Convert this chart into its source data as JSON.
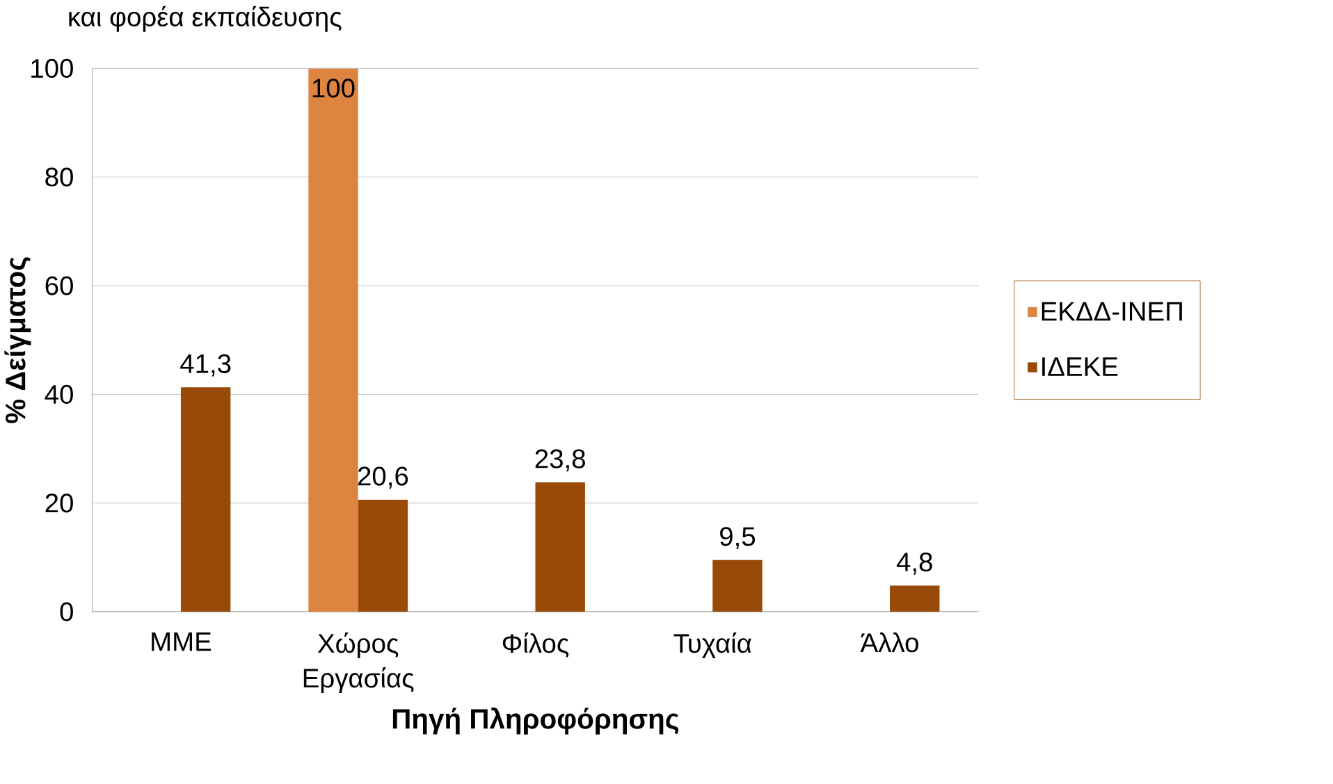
{
  "chart_data": {
    "type": "bar",
    "title": "και φορέα εκπαίδευσης",
    "xlabel": "Πηγή Πληροφόρησης",
    "ylabel": "% Δείγματος",
    "categories": [
      "ΜΜΕ",
      "Χώρος Εργασίας",
      "Φίλος",
      "Τυχαία",
      "Άλλο"
    ],
    "series": [
      {
        "name": "ΕΚΔΔ-ΙΝΕΠ",
        "color": "#dd8540",
        "values": [
          null,
          100,
          null,
          null,
          null
        ],
        "value_labels": [
          null,
          "100",
          null,
          null,
          null
        ]
      },
      {
        "name": "ΙΔΕΚΕ",
        "color": "#9a4a08",
        "values": [
          41.3,
          20.6,
          23.8,
          9.5,
          4.8
        ],
        "value_labels": [
          "41,3",
          "20,6",
          "23,8",
          "9,5",
          "4,8"
        ]
      }
    ],
    "ylim": [
      0,
      100
    ],
    "yticks": [
      0,
      20,
      40,
      60,
      80,
      100
    ],
    "grid": "y",
    "legend": "right"
  }
}
